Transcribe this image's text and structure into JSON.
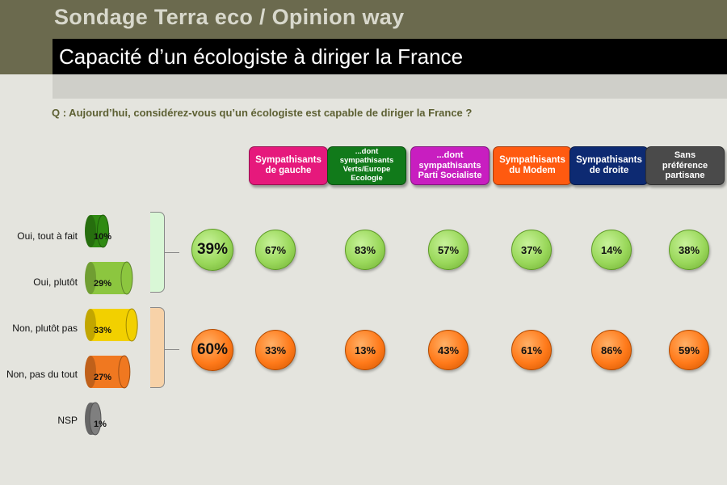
{
  "header": {
    "brand": "Sondage Terra eco / Opinion way",
    "title": "Capacité d’un écologiste à diriger la France"
  },
  "question": "Q : Aujourd’hui, considérez-vous qu’un écologiste est capable de diriger la France ?",
  "colors": {
    "tout_a_fait": "#2f8a12",
    "plutot": "#8cc63f",
    "plutot_pas": "#f2d000",
    "pas_du_tout": "#f07820",
    "nsp": "#7f7f7f",
    "yes_bracket": "#d9f7d6",
    "no_bracket": "#f7d2a8"
  },
  "chart_data": [
    {
      "type": "bar",
      "categories": [
        "Oui, tout à fait",
        "Oui, plutôt",
        "Non, plutôt pas",
        "Non, pas du tout",
        "NSP"
      ],
      "values": [
        10,
        29,
        33,
        27,
        1
      ],
      "value_labels": [
        "10%",
        "29%",
        "33%",
        "27%",
        "1%"
      ],
      "totals": {
        "oui": "39%",
        "non": "60%"
      }
    },
    {
      "type": "table",
      "columns": [
        {
          "label_lines": [
            "Sympathisants",
            "de gauche"
          ],
          "color": "#e6197c",
          "oui": "67%",
          "non": "33%"
        },
        {
          "label_lines": [
            "...dont",
            "sympathisants",
            "Verts/Europe",
            "Ecologie"
          ],
          "color": "#117a1a",
          "oui": "83%",
          "non": "13%"
        },
        {
          "label_lines": [
            "...dont",
            "sympathisants",
            "Parti Socialiste"
          ],
          "color": "#c81ec0",
          "oui": "57%",
          "non": "43%"
        },
        {
          "label_lines": [
            "Sympathisants",
            "du Modem"
          ],
          "color": "#ff5a10",
          "oui": "37%",
          "non": "61%"
        },
        {
          "label_lines": [
            "Sympathisants",
            "de droite"
          ],
          "color": "#0d2a72",
          "oui": "14%",
          "non": "86%"
        },
        {
          "label_lines": [
            "Sans",
            "préférence",
            "partisane"
          ],
          "color": "#4a4a4a",
          "oui": "38%",
          "non": "59%"
        }
      ]
    }
  ]
}
